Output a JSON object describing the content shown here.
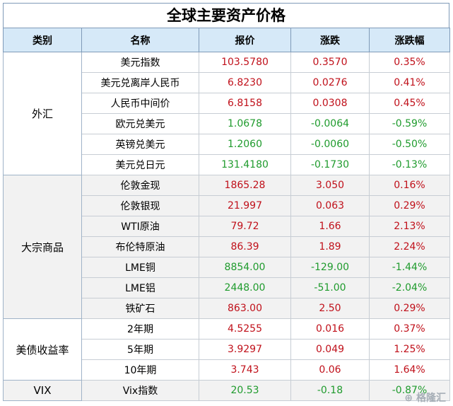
{
  "title": "全球主要资产价格",
  "headers": [
    "类别",
    "名称",
    "报价",
    "涨跌",
    "涨跌幅"
  ],
  "groups": [
    {
      "category": "外汇",
      "shade": false,
      "rows": [
        {
          "name": "美元指数",
          "price": "103.5780",
          "change": "0.3570",
          "pct": "0.35%",
          "price_dir": "up",
          "dir": "up"
        },
        {
          "name": "美元兑离岸人民币",
          "price": "6.8230",
          "change": "0.0276",
          "pct": "0.41%",
          "price_dir": "up",
          "dir": "up"
        },
        {
          "name": "人民币中间价",
          "price": "6.8158",
          "change": "0.0308",
          "pct": "0.45%",
          "price_dir": "up",
          "dir": "up"
        },
        {
          "name": "欧元兑美元",
          "price": "1.0678",
          "change": "-0.0064",
          "pct": "-0.59%",
          "price_dir": "down",
          "dir": "down"
        },
        {
          "name": "英镑兑美元",
          "price": "1.2060",
          "change": "-0.0060",
          "pct": "-0.50%",
          "price_dir": "down",
          "dir": "down"
        },
        {
          "name": "美元兑日元",
          "price": "131.4180",
          "change": "-0.1730",
          "pct": "-0.13%",
          "price_dir": "down",
          "dir": "down"
        }
      ]
    },
    {
      "category": "大宗商品",
      "shade": true,
      "rows": [
        {
          "name": "伦敦金现",
          "price": "1865.28",
          "change": "3.050",
          "pct": "0.16%",
          "price_dir": "up",
          "dir": "up"
        },
        {
          "name": "伦敦银现",
          "price": "21.997",
          "change": "0.063",
          "pct": "0.29%",
          "price_dir": "up",
          "dir": "up"
        },
        {
          "name": "WTI原油",
          "price": "79.72",
          "change": "1.66",
          "pct": "2.13%",
          "price_dir": "up",
          "dir": "up"
        },
        {
          "name": "布伦特原油",
          "price": "86.39",
          "change": "1.89",
          "pct": "2.24%",
          "price_dir": "up",
          "dir": "up"
        },
        {
          "name": "LME铜",
          "price": "8854.00",
          "change": "-129.00",
          "pct": "-1.44%",
          "price_dir": "down",
          "dir": "down"
        },
        {
          "name": "LME铝",
          "price": "2448.00",
          "change": "-51.00",
          "pct": "-2.04%",
          "price_dir": "down",
          "dir": "down"
        },
        {
          "name": "铁矿石",
          "price": "863.00",
          "change": "2.50",
          "pct": "0.29%",
          "price_dir": "up",
          "dir": "up"
        }
      ]
    },
    {
      "category": "美债收益率",
      "shade": false,
      "rows": [
        {
          "name": "2年期",
          "price": "4.5255",
          "change": "0.016",
          "pct": "0.37%",
          "price_dir": "up",
          "dir": "up"
        },
        {
          "name": "5年期",
          "price": "3.9297",
          "change": "0.049",
          "pct": "1.25%",
          "price_dir": "up",
          "dir": "up"
        },
        {
          "name": "10年期",
          "price": "3.743",
          "change": "0.06",
          "pct": "1.64%",
          "price_dir": "up",
          "dir": "up"
        }
      ]
    },
    {
      "category": "VIX",
      "shade": true,
      "rows": [
        {
          "name": "Vix指数",
          "price": "20.53",
          "change": "-0.18",
          "pct": "-0.87%",
          "price_dir": "down",
          "dir": "down"
        }
      ]
    }
  ],
  "colors": {
    "up": "#c0101a",
    "down": "#1f9b2d",
    "header_bg": "#d6e9f8",
    "shade_bg": "#f2f2f2"
  },
  "watermark": "格隆汇"
}
